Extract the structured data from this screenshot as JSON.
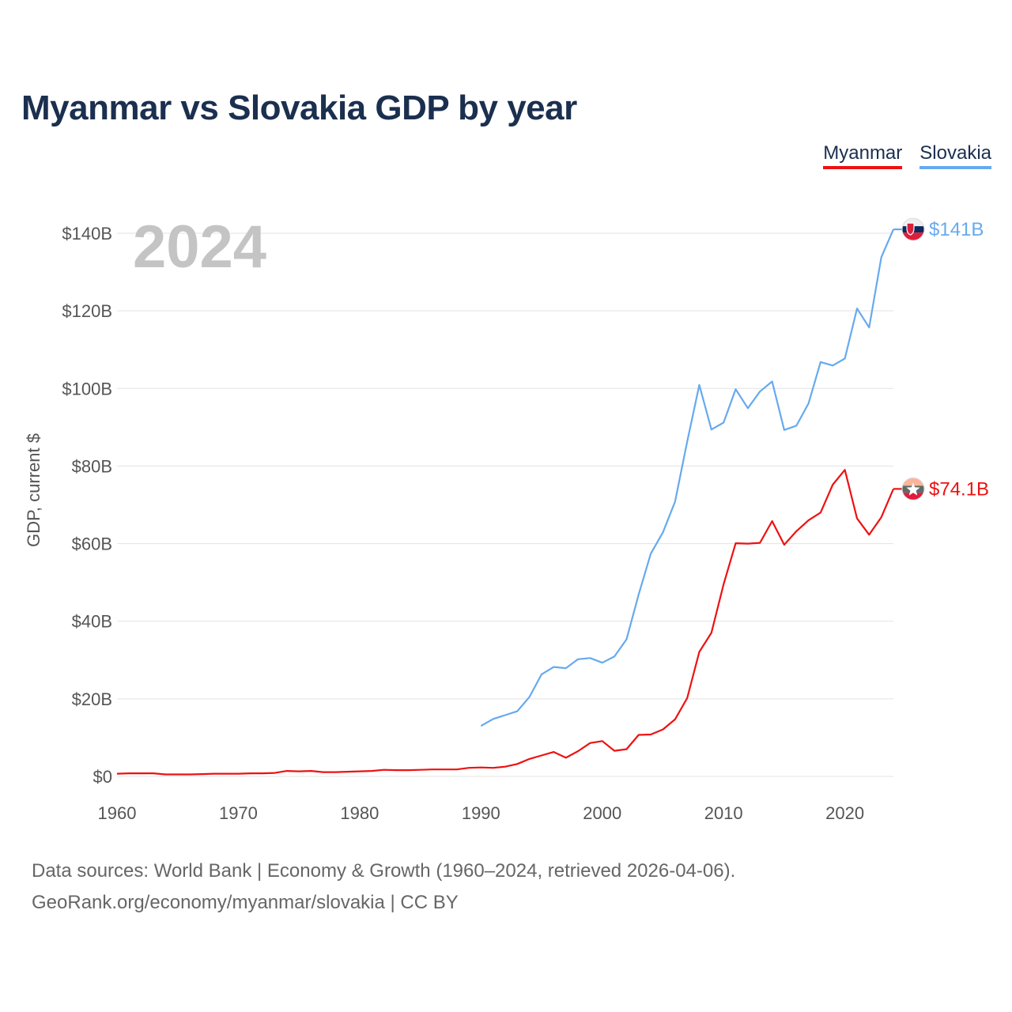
{
  "title": "Myanmar vs Slovakia GDP by year",
  "legend": [
    {
      "label": "Myanmar",
      "color": "#ee1111"
    },
    {
      "label": "Slovakia",
      "color": "#66aaee"
    }
  ],
  "footer": {
    "line1": "Data sources: World Bank | Economy & Growth (1960–2024, retrieved 2026-04-06).",
    "line2": "GeoRank.org/economy/myanmar/slovakia | CC BY"
  },
  "chart_data": {
    "type": "line",
    "title": "Myanmar vs Slovakia GDP by year",
    "current_year_label": "2024",
    "ylabel": "GDP, current $",
    "xlabel": "",
    "xlim": [
      1960,
      2024
    ],
    "ylim": [
      0,
      140
    ],
    "y_unit": "billion USD",
    "x_ticks": [
      1960,
      1970,
      1980,
      1990,
      2000,
      2010,
      2020
    ],
    "x_tick_labels": [
      "1960",
      "1970",
      "1980",
      "1990",
      "2000",
      "2010",
      "2020"
    ],
    "y_ticks": [
      0,
      20,
      40,
      60,
      80,
      100,
      120,
      140
    ],
    "y_tick_labels": [
      "$0",
      "$20B",
      "$40B",
      "$60B",
      "$80B",
      "$100B",
      "$120B",
      "$140B"
    ],
    "grid": true,
    "series": [
      {
        "name": "Myanmar",
        "color": "#ee1111",
        "flag": "myanmar-flag",
        "end_label": "$74.1B",
        "x": [
          1960,
          1961,
          1962,
          1963,
          1964,
          1965,
          1966,
          1967,
          1968,
          1969,
          1970,
          1971,
          1972,
          1973,
          1974,
          1975,
          1976,
          1977,
          1978,
          1979,
          1980,
          1981,
          1982,
          1983,
          1984,
          1985,
          1986,
          1987,
          1988,
          1989,
          1990,
          1991,
          1992,
          1993,
          1994,
          1995,
          1996,
          1997,
          1998,
          1999,
          2000,
          2001,
          2002,
          2003,
          2004,
          2005,
          2006,
          2007,
          2008,
          2009,
          2010,
          2011,
          2012,
          2013,
          2014,
          2015,
          2016,
          2017,
          2018,
          2019,
          2020,
          2021,
          2022,
          2023,
          2024
        ],
        "values": [
          0.7,
          0.8,
          0.8,
          0.8,
          0.5,
          0.5,
          0.5,
          0.6,
          0.7,
          0.7,
          0.7,
          0.8,
          0.8,
          0.9,
          1.4,
          1.3,
          1.4,
          1.1,
          1.1,
          1.2,
          1.3,
          1.4,
          1.7,
          1.6,
          1.6,
          1.7,
          1.8,
          1.8,
          1.8,
          2.2,
          2.3,
          2.2,
          2.5,
          3.2,
          4.5,
          5.4,
          6.3,
          4.8,
          6.5,
          8.6,
          9.1,
          6.6,
          7.0,
          10.7,
          10.8,
          12.1,
          14.7,
          20.2,
          32.1,
          37.0,
          49.5,
          60.1,
          60.0,
          60.2,
          65.8,
          59.7,
          63.2,
          66.0,
          68.0,
          75.2,
          79.0,
          66.5,
          62.3,
          66.8,
          74.1
        ]
      },
      {
        "name": "Slovakia",
        "color": "#66aaee",
        "flag": "slovakia-flag",
        "end_label": "$141B",
        "x": [
          1990,
          1991,
          1992,
          1993,
          1994,
          1995,
          1996,
          1997,
          1998,
          1999,
          2000,
          2001,
          2002,
          2003,
          2004,
          2005,
          2006,
          2007,
          2008,
          2009,
          2010,
          2011,
          2012,
          2013,
          2014,
          2015,
          2016,
          2017,
          2018,
          2019,
          2020,
          2021,
          2022,
          2023,
          2024
        ],
        "values": [
          13.0,
          14.8,
          15.8,
          16.8,
          20.5,
          26.3,
          28.2,
          27.9,
          30.2,
          30.5,
          29.3,
          30.9,
          35.3,
          46.9,
          57.4,
          62.9,
          70.8,
          86.3,
          100.9,
          89.4,
          91.2,
          99.8,
          94.9,
          99.2,
          101.8,
          89.3,
          90.4,
          96.1,
          106.8,
          105.9,
          107.7,
          120.6,
          115.7,
          133.8,
          141.0
        ]
      }
    ]
  }
}
